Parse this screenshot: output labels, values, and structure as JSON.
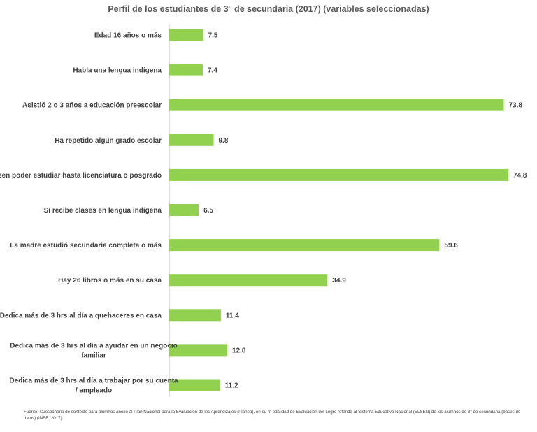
{
  "chart_data": {
    "type": "bar",
    "orientation": "horizontal",
    "title": "Perfil de los estudiantes de 3° de secundaria (2017)  (variables seleccionadas)",
    "categories": [
      [
        "Edad 16 años o más"
      ],
      [
        "Habla una lengua indígena"
      ],
      [
        "Asistió 2 o 3 años a educación preescolar"
      ],
      [
        "Ha repetido algún grado escolar"
      ],
      [
        "Creen poder estudiar hasta licenciatura o posgrado"
      ],
      [
        "Sí recibe clases en lengua indígena"
      ],
      [
        "La madre estudió secundaria completa o más"
      ],
      [
        "Hay 26 libros o más en su casa"
      ],
      [
        "Dedica más de 3 hrs al día a quehaceres en casa"
      ],
      [
        "Dedica más de 3 hrs al día a ayudar en un negocio",
        "familiar"
      ],
      [
        "Dedica más de 3 hrs al día a trabajar por su cuenta",
        "/ empleado"
      ]
    ],
    "values": [
      7.5,
      7.4,
      73.8,
      9.8,
      74.8,
      6.5,
      59.6,
      34.9,
      11.4,
      12.8,
      11.2
    ],
    "value_labels": [
      "7.5",
      "7.4",
      "73.8",
      "9.8",
      "74.8",
      "6.5",
      "59.6",
      "34.9",
      "11.4",
      "12.8",
      "11.2"
    ],
    "xlim": [
      0,
      74.8
    ],
    "grid": false,
    "legend": "none",
    "bar_color": "#92d050"
  },
  "source_note": "Fuente: Cuestionario de contexto para alumnos anexo al Plan Nacional para la Evaluación de los Aprendizajes (Planea), en su m odalidad de Evaluación del Logro referida al Sistema Educativo Nacional (ELSEN) de los alumnos de 3° de secundaria (bases de datos) (INEE, 2017)."
}
